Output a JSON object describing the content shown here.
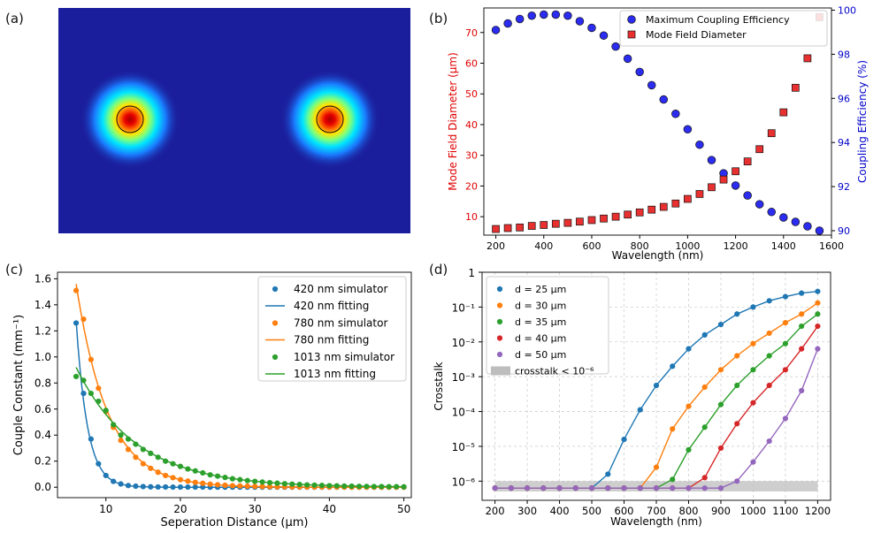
{
  "panel_labels": [
    "(a)",
    "(b)",
    "(c)",
    "(d)"
  ],
  "field_map": {
    "description": "two-core mode field intensity",
    "colors": {
      "background": "#1b1e9c",
      "core": "#b70000",
      "ring": "#111111"
    }
  },
  "chart_data": [
    {
      "id": "b",
      "type": "scatter",
      "title": "",
      "xlabel": "Wavelength (nm)",
      "ylabel_left": "Mode Field Diameter (μm)",
      "ylabel_right": "Coupling Efficiency (%)",
      "xlim": [
        150,
        1600
      ],
      "ylim_left": [
        4,
        78
      ],
      "ylim_right": [
        89.8,
        100.1
      ],
      "xticks": [
        200,
        400,
        600,
        800,
        1000,
        1200,
        1400,
        1600
      ],
      "yticks_left": [
        10,
        20,
        30,
        40,
        50,
        60,
        70
      ],
      "yticks_right": [
        90,
        92,
        94,
        96,
        98,
        100
      ],
      "left_color": "#e00000",
      "right_color": "#0000cc",
      "legend_position": "top-right",
      "x": [
        200,
        250,
        300,
        350,
        400,
        450,
        500,
        550,
        600,
        650,
        700,
        750,
        800,
        850,
        900,
        950,
        1000,
        1050,
        1100,
        1150,
        1200,
        1250,
        1300,
        1350,
        1400,
        1450,
        1500,
        1550
      ],
      "series": [
        {
          "name": "Maximum Coupling Efficiency",
          "axis": "right",
          "marker": "circle",
          "color": "#2c2cf0",
          "values": [
            99.1,
            99.4,
            99.6,
            99.75,
            99.8,
            99.8,
            99.75,
            99.5,
            99.2,
            98.85,
            98.35,
            97.8,
            97.2,
            96.6,
            95.95,
            95.3,
            94.6,
            93.9,
            93.2,
            92.6,
            92.05,
            91.6,
            91.2,
            90.85,
            90.6,
            90.4,
            90.2,
            90.0
          ]
        },
        {
          "name": "Mode Field Diameter",
          "axis": "left",
          "marker": "square",
          "color": "#e83030",
          "values": [
            6.0,
            6.3,
            6.5,
            7.0,
            7.3,
            7.7,
            8.0,
            8.4,
            8.9,
            9.4,
            10.0,
            10.7,
            11.4,
            12.3,
            13.2,
            14.3,
            15.8,
            17.4,
            19.6,
            22.1,
            24.8,
            28.0,
            32.0,
            37.2,
            44.0,
            52.0,
            61.6,
            75.0
          ]
        }
      ]
    },
    {
      "id": "c",
      "type": "scatter",
      "title": "",
      "xlabel": "Seperation Distance (μm)",
      "ylabel": "Couple Constant (mm⁻¹)",
      "xlim": [
        3.5,
        51
      ],
      "ylim": [
        -0.08,
        1.65
      ],
      "xticks": [
        10,
        20,
        30,
        40,
        50
      ],
      "yticks": [
        0.0,
        0.2,
        0.4,
        0.6,
        0.8,
        1.0,
        1.2,
        1.4,
        1.6
      ],
      "legend_position": "top-right",
      "x": [
        6,
        7,
        8,
        9,
        10,
        11,
        12,
        13,
        14,
        15,
        16,
        17,
        18,
        19,
        20,
        21,
        22,
        23,
        24,
        25,
        26,
        27,
        28,
        29,
        30,
        31,
        32,
        33,
        34,
        35,
        36,
        37,
        38,
        39,
        40,
        41,
        42,
        43,
        44,
        45,
        46,
        47,
        48,
        49,
        50
      ],
      "series": [
        {
          "name": "420 nm",
          "color": "#1f77b4",
          "sim_label": "420 nm simulator",
          "fit_label": "420 nm fitting",
          "values": [
            1.26,
            0.72,
            0.37,
            0.18,
            0.09,
            0.045,
            0.025,
            0.013,
            0.008,
            0.005,
            0.003,
            0.002,
            0.002,
            0.001,
            0.001,
            0.001,
            0.001,
            0.001,
            0,
            0,
            0,
            0,
            0,
            0,
            0,
            0,
            0,
            0,
            0,
            0,
            0,
            0,
            0,
            0,
            0,
            0,
            0,
            0,
            0,
            0,
            0,
            0,
            0,
            0,
            0
          ],
          "fit": {
            "model": "exponential",
            "a": 1.28,
            "b": 0.66,
            "x0": 6
          }
        },
        {
          "name": "780 nm",
          "color": "#ff7f0e",
          "sim_label": "780 nm simulator",
          "fit_label": "780 nm fitting",
          "values": [
            1.51,
            1.29,
            0.98,
            0.76,
            0.58,
            0.46,
            0.36,
            0.29,
            0.23,
            0.18,
            0.145,
            0.115,
            0.09,
            0.073,
            0.058,
            0.047,
            0.037,
            0.03,
            0.024,
            0.019,
            0.015,
            0.012,
            0.01,
            0.008,
            0.006,
            0.005,
            0.004,
            0.003,
            0.003,
            0.002,
            0.002,
            0.001,
            0.001,
            0.001,
            0.001,
            0.001,
            0,
            0,
            0,
            0,
            0,
            0,
            0,
            0,
            0
          ],
          "fit": {
            "model": "exponential",
            "a": 1.56,
            "b": 0.235,
            "x0": 6
          }
        },
        {
          "name": "1013 nm",
          "color": "#2ca02c",
          "sim_label": "1013 nm simulator",
          "fit_label": "1013 nm fitting",
          "values": [
            0.85,
            0.82,
            0.72,
            0.66,
            0.59,
            0.48,
            0.4,
            0.37,
            0.33,
            0.29,
            0.26,
            0.23,
            0.2,
            0.18,
            0.16,
            0.14,
            0.125,
            0.11,
            0.095,
            0.085,
            0.075,
            0.065,
            0.058,
            0.051,
            0.045,
            0.04,
            0.035,
            0.031,
            0.027,
            0.024,
            0.021,
            0.018,
            0.016,
            0.014,
            0.012,
            0.011,
            0.009,
            0.008,
            0.007,
            0.006,
            0.005,
            0.005,
            0.004,
            0.004,
            0.003
          ],
          "fit": {
            "model": "exponential",
            "a": 0.92,
            "b": 0.125,
            "x0": 6
          }
        }
      ]
    },
    {
      "id": "d",
      "type": "line",
      "title": "",
      "xlabel": "Wavelength (nm)",
      "ylabel": "Crosstalk",
      "yscale": "log",
      "xlim": [
        160,
        1240
      ],
      "ylim_log10": [
        -6.55,
        0.0
      ],
      "xticks": [
        200,
        300,
        400,
        500,
        600,
        700,
        800,
        900,
        1000,
        1100,
        1200
      ],
      "ytick_labels": [
        "10⁻⁶",
        "10⁻⁵",
        "10⁻⁴",
        "10⁻³",
        "10⁻²",
        "10⁻¹",
        "1"
      ],
      "ytick_log10": [
        -6,
        -5,
        -4,
        -3,
        -2,
        -1,
        0
      ],
      "legend_position": "top-left",
      "threshold": {
        "label": "crosstalk < 10⁻⁶",
        "log10": -6,
        "color": "#bdbdbd"
      },
      "x": [
        200,
        250,
        300,
        350,
        400,
        450,
        500,
        550,
        600,
        650,
        700,
        750,
        800,
        850,
        900,
        950,
        1000,
        1050,
        1100,
        1150,
        1200
      ],
      "series": [
        {
          "name": "d = 25 μm",
          "color": "#1f77b4",
          "log10": [
            -6.2,
            -6.2,
            -6.2,
            -6.2,
            -6.2,
            -6.2,
            -6.2,
            -5.8,
            -4.8,
            -3.95,
            -3.25,
            -2.7,
            -2.2,
            -1.8,
            -1.5,
            -1.2,
            -1.0,
            -0.82,
            -0.7,
            -0.6,
            -0.55
          ]
        },
        {
          "name": "d = 30 μm",
          "color": "#ff7f0e",
          "log10": [
            -6.2,
            -6.2,
            -6.2,
            -6.2,
            -6.2,
            -6.2,
            -6.2,
            -6.2,
            -6.2,
            -6.2,
            -5.6,
            -4.5,
            -3.85,
            -3.3,
            -2.8,
            -2.4,
            -2.05,
            -1.75,
            -1.45,
            -1.2,
            -0.88
          ]
        },
        {
          "name": "d = 35 μm",
          "color": "#2ca02c",
          "log10": [
            -6.2,
            -6.2,
            -6.2,
            -6.2,
            -6.2,
            -6.2,
            -6.2,
            -6.2,
            -6.2,
            -6.2,
            -6.2,
            -5.95,
            -5.1,
            -4.45,
            -3.8,
            -3.25,
            -2.8,
            -2.4,
            -2.05,
            -1.55,
            -1.2
          ]
        },
        {
          "name": "d = 40 μm",
          "color": "#d62728",
          "log10": [
            -6.2,
            -6.2,
            -6.2,
            -6.2,
            -6.2,
            -6.2,
            -6.2,
            -6.2,
            -6.2,
            -6.2,
            -6.2,
            -6.2,
            -6.2,
            -5.9,
            -5.05,
            -4.35,
            -3.75,
            -3.25,
            -2.8,
            -2.2,
            -1.55
          ]
        },
        {
          "name": "d = 50 μm",
          "color": "#9467bd",
          "log10": [
            -6.2,
            -6.2,
            -6.2,
            -6.2,
            -6.2,
            -6.2,
            -6.2,
            -6.2,
            -6.2,
            -6.2,
            -6.2,
            -6.2,
            -6.2,
            -6.2,
            -6.2,
            -6.0,
            -5.45,
            -4.85,
            -4.2,
            -3.4,
            -2.2
          ]
        }
      ]
    }
  ]
}
